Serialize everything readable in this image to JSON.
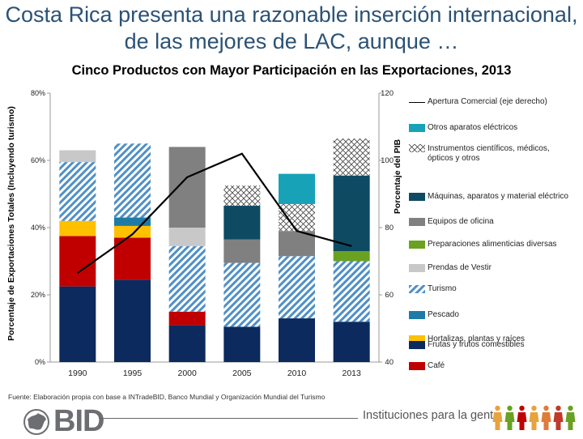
{
  "slide_title": "Costa Rica presenta una razonable inserción internacional, de las mejores de LAC, aunque …",
  "chart_data": {
    "type": "bar",
    "title": "Cinco Productos con Mayor Participación en las Exportaciones, 2013",
    "ylabel": "Porcentaje de Exportaciones Totales (Incluyendo turismo)",
    "ylabel_right": "Porcentaje del PIB",
    "ylim": [
      0,
      80
    ],
    "y2lim": [
      40,
      120
    ],
    "yticks": [
      "0%",
      "20%",
      "40%",
      "60%",
      "80%"
    ],
    "y2ticks": [
      "40",
      "60",
      "80",
      "100",
      "120"
    ],
    "categories": [
      "1990",
      "1995",
      "2000",
      "2005",
      "2010",
      "2013"
    ],
    "stacked": true,
    "series": [
      {
        "name": "Frutas y frutos comestibles",
        "color": "#0c2a5e",
        "pattern": "solid",
        "values": [
          22.5,
          24.5,
          11,
          10.5,
          13,
          12
        ]
      },
      {
        "name": "Café",
        "color": "#c00000",
        "pattern": "solid",
        "values": [
          15,
          12.5,
          4,
          0,
          0,
          0
        ]
      },
      {
        "name": "Hortalizas, plantas y raíces",
        "color": "#ffc000",
        "pattern": "solid",
        "values": [
          4.5,
          3.5,
          0,
          0,
          0,
          0
        ]
      },
      {
        "name": "Pescado",
        "color": "#1f7ba6",
        "pattern": "solid",
        "values": [
          0,
          2.5,
          0,
          0,
          0,
          0
        ]
      },
      {
        "name": "Turismo",
        "color": "#4f8fc7",
        "pattern": "hatch",
        "values": [
          17.5,
          22,
          19.5,
          19,
          18.5,
          18
        ]
      },
      {
        "name": "Prendas de Vestir",
        "color": "#c8c8c8",
        "pattern": "solid",
        "values": [
          3.5,
          0,
          5.5,
          0,
          0,
          0
        ]
      },
      {
        "name": "Preparaciones alimenticias diversas",
        "color": "#6aa121",
        "pattern": "solid",
        "values": [
          0,
          0,
          0,
          0,
          0,
          3
        ]
      },
      {
        "name": "Equipos de oficina",
        "color": "#808080",
        "pattern": "solid",
        "values": [
          0,
          0,
          24,
          7,
          7.5,
          0
        ]
      },
      {
        "name": "Máquinas, aparatos y material eléctrico",
        "color": "#0e4b63",
        "pattern": "solid",
        "values": [
          0,
          0,
          0,
          10,
          0,
          22.5
        ]
      },
      {
        "name": "Instrumentos científicos, médicos, ópticos y otros",
        "color": "#333333",
        "pattern": "crosshatch",
        "values": [
          0,
          0,
          0,
          6,
          8,
          11
        ]
      },
      {
        "name": "Otros aparatos eléctricos",
        "color": "#17a2b8",
        "pattern": "solid",
        "values": [
          0,
          0,
          0,
          0,
          9,
          0
        ]
      }
    ],
    "line": {
      "name": "Apertura Comercial (eje derecho)",
      "axis": "right",
      "values": [
        66.5,
        78,
        95,
        102,
        79,
        74.5
      ]
    },
    "grid": false,
    "legend_position": "right"
  },
  "legend_order": [
    {
      "label": "Apertura Comercial (eje derecho)",
      "kind": "line",
      "color": "#000000"
    },
    {
      "label": "Otros aparatos eléctricos",
      "kind": "solid",
      "color": "#17a2b8"
    },
    {
      "label": "Instrumentos científicos, médicos, ópticos y otros",
      "kind": "crosshatch",
      "color": "#333333"
    },
    {
      "label": "Máquinas, aparatos y material eléctrico",
      "kind": "solid",
      "color": "#0e4b63"
    },
    {
      "label": "Equipos de oficina",
      "kind": "solid",
      "color": "#808080"
    },
    {
      "label": "Preparaciones alimenticias diversas",
      "kind": "solid",
      "color": "#6aa121"
    },
    {
      "label": "Prendas de Vestir",
      "kind": "solid",
      "color": "#c8c8c8"
    },
    {
      "label": "Turismo",
      "kind": "hatch",
      "color": "#4f8fc7"
    },
    {
      "label": "Pescado",
      "kind": "solid",
      "color": "#1f7ba6"
    },
    {
      "label": "Hortalizas, plantas y raíces",
      "kind": "solid",
      "color": "#ffc000"
    },
    {
      "label": "Café",
      "kind": "solid",
      "color": "#c00000"
    },
    {
      "label": "Frutas y frutos comestibles",
      "kind": "solid",
      "color": "#0c2a5e"
    }
  ],
  "source": "Fuente: Elaboración propia con base a INTradeBID, Banco Mundial y Organización Mundial del Turismo",
  "footer": {
    "logo_text": "BID",
    "tagline": "Instituciones para la gente",
    "figure_colors": [
      "#e8a33d",
      "#6aa121",
      "#c00000",
      "#e8a33d",
      "#e07b39",
      "#c0392b",
      "#6aa121"
    ]
  }
}
